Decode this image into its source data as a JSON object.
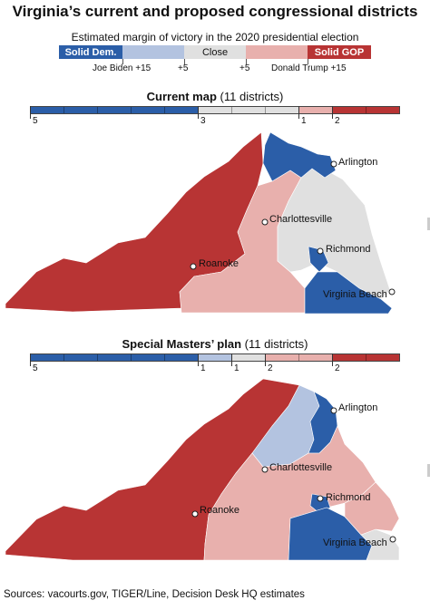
{
  "title": "Virginia’s current and proposed congressional districts",
  "legend": {
    "subtitle": "Estimated margin of victory in the 2020 presidential election",
    "solid_dem": "Solid Dem.",
    "close": "Close",
    "solid_gop": "Solid GOP",
    "biden_label": "Joe Biden +15",
    "plus5_left": "+5",
    "plus5_right": "+5",
    "trump_label": "Donald Trump +15",
    "colors": {
      "solid_dem": "#2b5ea8",
      "lean_dem": "#b3c3e0",
      "close": "#e0e0e0",
      "lean_gop": "#e8b0ad",
      "solid_gop": "#b83434"
    }
  },
  "current": {
    "title": "Current map",
    "count_note": "(11 districts)",
    "counts": {
      "solid_dem": "5",
      "close": "3",
      "lean_gop": "1",
      "solid_gop": "2"
    }
  },
  "proposed": {
    "title": "Special Masters’ plan",
    "count_note": "(11 districts)",
    "counts": {
      "solid_dem": "5",
      "lean_dem": "1",
      "close": "1",
      "lean_gop": "2",
      "solid_gop": "2"
    }
  },
  "cities": {
    "arlington": "Arlington",
    "charlottesville": "Charlottesville",
    "richmond": "Richmond",
    "roanoke": "Roanoke",
    "virginia_beach": "Virginia Beach"
  },
  "source": "Sources: vacourts.gov, TIGER/Line, Decision Desk HQ estimates"
}
